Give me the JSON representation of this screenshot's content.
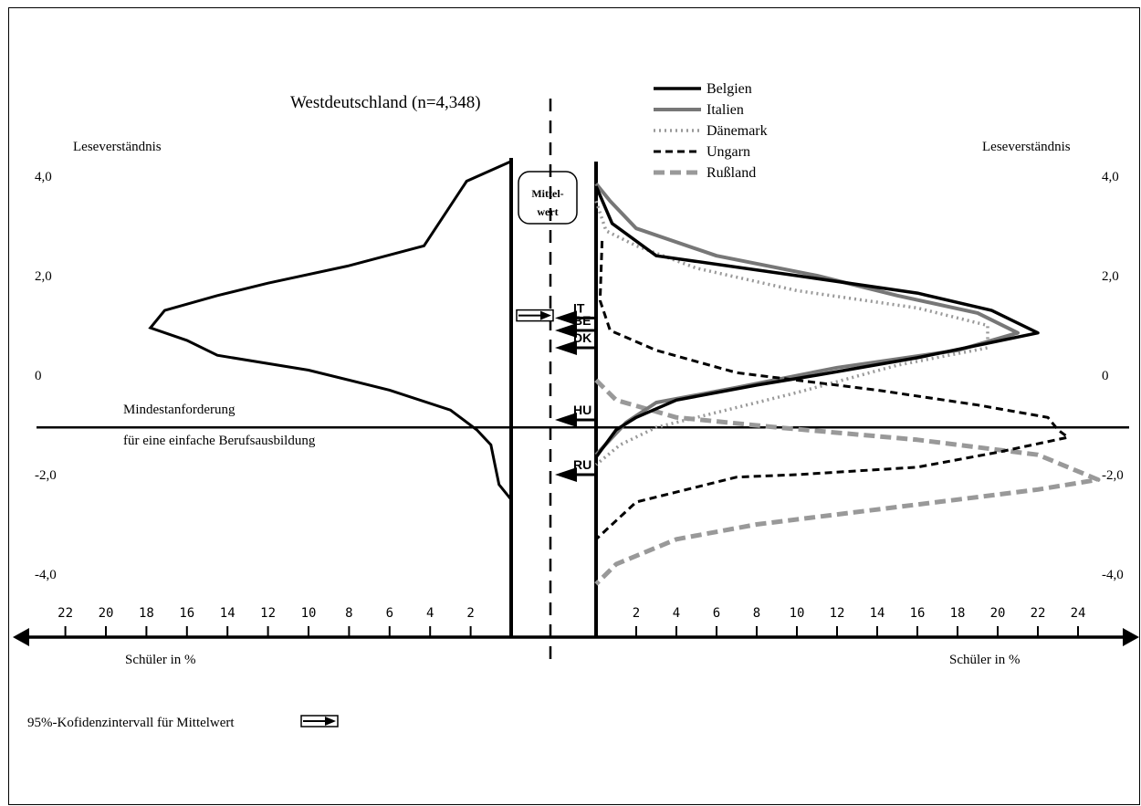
{
  "chart_data": {
    "type": "line",
    "title": "Westdeutschland (n=4,348)",
    "ylabel_left": "Leseverständnis",
    "ylabel_right": "Leseverständnis",
    "xlabel_left": "Schüler in %",
    "xlabel_right": "Schüler in %",
    "y_ticks": [
      "4,0",
      "2,0",
      "0",
      "-2,0",
      "-4,0"
    ],
    "y_tick_values": [
      4,
      2,
      0,
      -2,
      -4
    ],
    "x_ticks_left": [
      "22",
      "20",
      "18",
      "16",
      "14",
      "12",
      "10",
      "8",
      "6",
      "4",
      "2"
    ],
    "x_ticks_right": [
      "2",
      "4",
      "6",
      "8",
      "10",
      "12",
      "14",
      "16",
      "18",
      "20",
      "22",
      "24"
    ],
    "xlim_left": [
      0,
      24
    ],
    "xlim_right": [
      0,
      25
    ],
    "ylim": [
      -4.5,
      4.5
    ],
    "mean_box": [
      "Mittel-",
      "wert"
    ],
    "threshold": {
      "value": -1.05,
      "label_line1": "Mindestanforderung",
      "label_line2": "für eine einfache Berufsausbildung"
    },
    "ci_label": "95%-Kofidenzintervall für Mittelwert",
    "legend": [
      {
        "name": "Belgien",
        "color": "#000000",
        "style": "solid"
      },
      {
        "name": "Italien",
        "color": "#777777",
        "style": "solid"
      },
      {
        "name": "Dänemark",
        "color": "#999999",
        "style": "dotted"
      },
      {
        "name": "Ungarn",
        "color": "#000000",
        "style": "dashed"
      },
      {
        "name": "Rußland",
        "color": "#999999",
        "style": "dashed"
      }
    ],
    "country_markers": [
      {
        "code": "IT",
        "mean": 1.15
      },
      {
        "code": "BE",
        "mean": 0.9
      },
      {
        "code": "DK",
        "mean": 0.55
      },
      {
        "code": "HU",
        "mean": -0.9
      },
      {
        "code": "RU",
        "mean": -2.0
      }
    ],
    "west_germany_mean": 1.2,
    "series_left": {
      "name": "Westdeutschland",
      "points": [
        [
          0,
          4.3
        ],
        [
          2.2,
          3.9
        ],
        [
          4.3,
          2.6
        ],
        [
          8,
          2.2
        ],
        [
          12,
          1.85
        ],
        [
          14.5,
          1.6
        ],
        [
          17.1,
          1.3
        ],
        [
          17.8,
          0.95
        ],
        [
          16,
          0.7
        ],
        [
          14.5,
          0.4
        ],
        [
          10,
          0.1
        ],
        [
          6,
          -0.3
        ],
        [
          3,
          -0.7
        ],
        [
          1.7,
          -1.1
        ],
        [
          1,
          -1.4
        ],
        [
          0.8,
          -1.8
        ],
        [
          0.6,
          -2.2
        ],
        [
          0,
          -2.5
        ]
      ]
    },
    "series": [
      {
        "name": "Belgien",
        "points": [
          [
            0,
            3.8
          ],
          [
            0.8,
            3.05
          ],
          [
            3,
            2.4
          ],
          [
            10,
            2.0
          ],
          [
            16,
            1.65
          ],
          [
            19.7,
            1.3
          ],
          [
            22,
            0.85
          ],
          [
            16,
            0.35
          ],
          [
            11,
            0
          ],
          [
            8,
            -0.2
          ],
          [
            4,
            -0.5
          ],
          [
            2,
            -0.85
          ],
          [
            1,
            -1.1
          ],
          [
            0,
            -1.65
          ]
        ]
      },
      {
        "name": "Italien",
        "points": [
          [
            0,
            3.85
          ],
          [
            0.7,
            3.5
          ],
          [
            2,
            2.95
          ],
          [
            6,
            2.4
          ],
          [
            11,
            2.0
          ],
          [
            15,
            1.6
          ],
          [
            19,
            1.25
          ],
          [
            21,
            0.85
          ],
          [
            18,
            0.5
          ],
          [
            12,
            0.15
          ],
          [
            7,
            -0.25
          ],
          [
            3,
            -0.55
          ],
          [
            1.5,
            -0.95
          ],
          [
            0,
            -1.6
          ]
        ]
      },
      {
        "name": "Dänemark",
        "points": [
          [
            0,
            3.5
          ],
          [
            0.5,
            2.9
          ],
          [
            2,
            2.6
          ],
          [
            5,
            2.15
          ],
          [
            10,
            1.7
          ],
          [
            16,
            1.35
          ],
          [
            19.5,
            1.0
          ],
          [
            19.5,
            0.55
          ],
          [
            15,
            0.2
          ],
          [
            10,
            -0.35
          ],
          [
            6,
            -0.75
          ],
          [
            3,
            -1.05
          ],
          [
            1.2,
            -1.4
          ],
          [
            0,
            -1.8
          ]
        ]
      },
      {
        "name": "Ungarn",
        "points": [
          [
            0.3,
            2.7
          ],
          [
            0.2,
            1.5
          ],
          [
            0.7,
            0.9
          ],
          [
            3,
            0.5
          ],
          [
            7,
            0.05
          ],
          [
            14,
            -0.3
          ],
          [
            19,
            -0.6
          ],
          [
            22.5,
            -0.85
          ],
          [
            23,
            -1.1
          ],
          [
            23.5,
            -1.25
          ],
          [
            20,
            -1.55
          ],
          [
            16,
            -1.85
          ],
          [
            10,
            -2.0
          ],
          [
            7,
            -2.05
          ],
          [
            4,
            -2.35
          ],
          [
            2,
            -2.55
          ],
          [
            0,
            -3.3
          ]
        ]
      },
      {
        "name": "Rußland",
        "points": [
          [
            0,
            -0.1
          ],
          [
            1,
            -0.5
          ],
          [
            4,
            -0.85
          ],
          [
            9,
            -1.05
          ],
          [
            16,
            -1.3
          ],
          [
            22,
            -1.6
          ],
          [
            23.5,
            -1.85
          ],
          [
            25,
            -2.1
          ],
          [
            22,
            -2.3
          ],
          [
            18,
            -2.5
          ],
          [
            12,
            -2.8
          ],
          [
            8,
            -3.0
          ],
          [
            4,
            -3.3
          ],
          [
            1,
            -3.8
          ],
          [
            0,
            -4.2
          ]
        ]
      }
    ]
  }
}
